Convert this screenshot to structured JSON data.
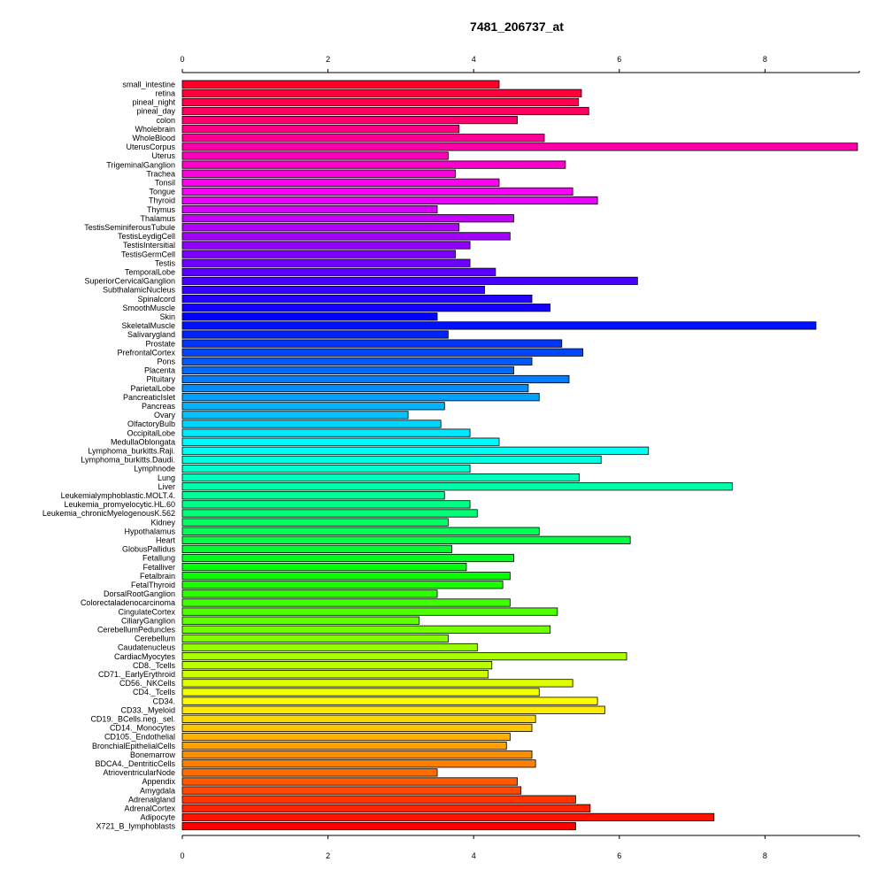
{
  "chart_data": {
    "type": "bar",
    "orientation": "horizontal",
    "title": "7481_206737_at",
    "xlabel": "",
    "ylabel": "",
    "xlim": [
      0,
      9.3
    ],
    "xticks": [
      0,
      2,
      4,
      6,
      8
    ],
    "grid": false,
    "legend": "none",
    "categories": [
      "small_intestine",
      "retina",
      "pineal_night",
      "pineal_day",
      "colon",
      "Wholebrain",
      "WholeBlood",
      "UterusCorpus",
      "Uterus",
      "TrigeminalGanglion",
      "Trachea",
      "Tonsil",
      "Tongue",
      "Thyroid",
      "Thymus",
      "Thalamus",
      "TestisSeminiferousTubule",
      "TestisLeydigCell",
      "TestisIntersitial",
      "TestisGermCell",
      "Testis",
      "TemporalLobe",
      "SuperiorCervicalGanglion",
      "SubthalamicNucleus",
      "Spinalcord",
      "SmoothMuscle",
      "Skin",
      "SkeletalMuscle",
      "Salivarygland",
      "Prostate",
      "PrefrontalCortex",
      "Pons",
      "Placenta",
      "Pituitary",
      "ParietalLobe",
      "PancreaticIslet",
      "Pancreas",
      "Ovary",
      "OlfactoryBulb",
      "OccipitalLobe",
      "MedullaOblongata",
      "Lymphoma_burkitts.Raji.",
      "Lymphoma_burkitts.Daudi.",
      "Lymphnode",
      "Lung",
      "Liver",
      "Leukemialymphoblastic.MOLT.4.",
      "Leukemia_promyelocytic.HL.60",
      "Leukemia_chronicMyelogenousK.562",
      "Kidney",
      "Hypothalamus",
      "Heart",
      "GlobusPallidus",
      "Fetallung",
      "Fetalliver",
      "Fetalbrain",
      "FetalThyroid",
      "DorsalRootGanglion",
      "Colorectaladenocarcinoma",
      "CingulateCortex",
      "CiliaryGanglion",
      "CerebellumPeduncles",
      "Cerebellum",
      "Caudatenucleus",
      "CardiacMyocytes",
      "CD8._Tcells",
      "CD71._EarlyErythroid",
      "CD56._NKCells",
      "CD4._Tcells",
      "CD34.",
      "CD33._Myeloid",
      "CD19._BCells.neg._sel.",
      "CD14._Monocytes",
      "CD105._Endothelial",
      "BronchialEpithelialCells",
      "Bonemarrow",
      "BDCA4._DentriticCells",
      "AtrioventricularNode",
      "Appendix",
      "Amygdala",
      "Adrenalgland",
      "AdrenalCortex",
      "Adipocyte",
      "X721_B_lymphoblasts"
    ],
    "values": [
      4.35,
      5.48,
      5.44,
      5.58,
      4.6,
      3.8,
      4.97,
      9.27,
      3.65,
      5.26,
      3.75,
      4.35,
      5.36,
      5.7,
      3.5,
      4.55,
      3.8,
      4.5,
      3.95,
      3.75,
      3.95,
      4.3,
      6.25,
      4.15,
      4.8,
      5.05,
      3.5,
      8.7,
      3.65,
      5.21,
      5.5,
      4.8,
      4.55,
      5.31,
      4.75,
      4.9,
      3.6,
      3.1,
      3.55,
      3.95,
      4.35,
      6.4,
      5.75,
      3.95,
      5.45,
      7.55,
      3.6,
      3.95,
      4.05,
      3.65,
      4.9,
      6.15,
      3.7,
      4.55,
      3.9,
      4.5,
      4.4,
      3.5,
      4.5,
      5.15,
      3.25,
      5.05,
      3.65,
      4.05,
      6.1,
      4.25,
      4.2,
      5.36,
      4.9,
      5.7,
      5.8,
      4.85,
      4.8,
      4.5,
      4.45,
      4.8,
      4.85,
      3.5,
      4.6,
      4.65,
      5.4,
      5.6,
      7.3,
      5.4
    ]
  }
}
